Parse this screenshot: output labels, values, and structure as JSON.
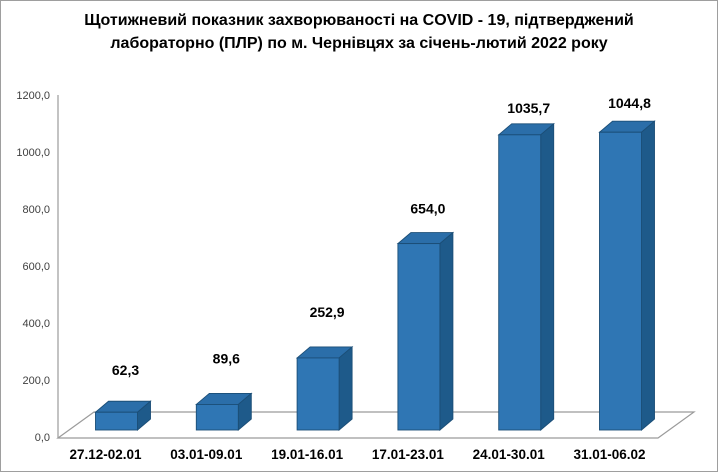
{
  "title": {
    "line1": "Щотижневий показник захворюваності на COVID - 19, підтверджений",
    "line2": "лабораторно (ПЛР) по м. Чернівцях за січень-лютий 2022 року"
  },
  "chart_data": {
    "type": "bar",
    "style": "3d-column",
    "title": "Щотижневий показник захворюваності на COVID - 19, підтверджений лабораторно (ПЛР) по м. Чернівцях за січень-лютий 2022 року",
    "categories": [
      "27.12-02.01",
      "03.01-09.01",
      "19.01-16.01",
      "17.01-23.01",
      "24.01-30.01",
      "31.01-06.02"
    ],
    "values": [
      62.3,
      89.6,
      252.9,
      654.0,
      1035.7,
      1044.8
    ],
    "value_labels": [
      "62,3",
      "89,6",
      "252,9",
      "654,0",
      "1035,7",
      "1044,8"
    ],
    "xlabel": "",
    "ylabel": "",
    "ylim": [
      0,
      1200
    ],
    "ytick_step": 200,
    "ytick_labels": [
      "0,0",
      "200,0",
      "400,0",
      "600,0",
      "800,0",
      "1000,0",
      "1200,0"
    ],
    "grid": false,
    "legend": "none",
    "decimal_separator": ",",
    "colors": {
      "bar_front": "#2F76B4",
      "bar_top": "#2B6EA9",
      "bar_side": "#1E5A8A",
      "bar_outline": "#1B4E77",
      "axis": "#9B9B9B",
      "tick_text": "#3F3F3F",
      "label_text": "#000000",
      "background": "#FFFFFF",
      "border": "#9E9E9E"
    }
  }
}
